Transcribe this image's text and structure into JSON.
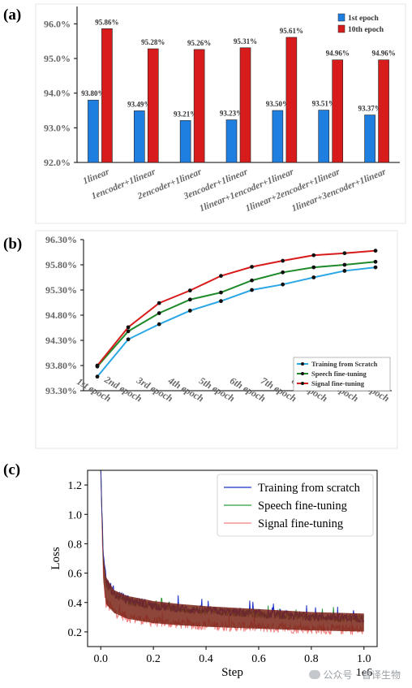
{
  "panels": {
    "a": {
      "label": "(a)"
    },
    "b": {
      "label": "(b)"
    },
    "c": {
      "label": "(c)"
    }
  },
  "watermark": "公众号 · 普译生物",
  "colors": {
    "blue": "#1f7fe0",
    "red": "#d81c1c",
    "green": "#1e8a2a",
    "cyan": "#2aa7e4",
    "loss_blue": "#1f30c8",
    "loss_green": "#2c9a3a",
    "loss_red": "#f08080",
    "loss_brown": "#7a2418"
  },
  "chart_data": [
    {
      "type": "bar",
      "categories": [
        "1linear",
        "1encoder+1linear",
        "2encoder+1linear",
        "3encoder+1linear",
        "1linear+1encoder+1linear",
        "1linear+2encoder+1linear",
        "1linear+3encoder+1linear"
      ],
      "series": [
        {
          "name": "1st epoch",
          "values": [
            93.8,
            93.49,
            93.21,
            93.23,
            93.5,
            93.51,
            93.37
          ]
        },
        {
          "name": "10th epoch",
          "values": [
            95.86,
            95.28,
            95.26,
            95.31,
            95.61,
            94.96,
            94.96
          ]
        }
      ],
      "value_labels": [
        [
          "93.80%",
          "93.49%",
          "93.21%",
          "93.23%",
          "93.50%",
          "93.51%",
          "93.37%"
        ],
        [
          "95.86%",
          "95.28%",
          "95.26%",
          "95.31%",
          "95.61%",
          "94.96%",
          "94.96%"
        ]
      ],
      "ylim": [
        92.0,
        96.5
      ],
      "yticks": [
        92.0,
        93.0,
        94.0,
        95.0,
        96.0
      ],
      "ytick_labels": [
        "92.0%",
        "93.0%",
        "94.0%",
        "95.0%",
        "96.0%"
      ],
      "legend": "top-right"
    },
    {
      "type": "line",
      "categories": [
        "1st epoch",
        "2nd epoch",
        "3rd epoch",
        "4th epoch",
        "5th epoch",
        "6th epoch",
        "7th epoch",
        "8th epoch",
        "9th epoch",
        "10th epoch"
      ],
      "series": [
        {
          "name": "Training from Scratch",
          "values": [
            93.58,
            94.32,
            94.62,
            94.89,
            95.08,
            95.3,
            95.41,
            95.55,
            95.68,
            95.75
          ]
        },
        {
          "name": "Speech fine-tuning",
          "values": [
            93.78,
            94.48,
            94.84,
            95.11,
            95.25,
            95.49,
            95.65,
            95.75,
            95.8,
            95.86
          ]
        },
        {
          "name": "Signal fine-tuning",
          "values": [
            93.8,
            94.56,
            95.04,
            95.29,
            95.58,
            95.76,
            95.88,
            95.99,
            96.03,
            96.08
          ]
        }
      ],
      "ylim": [
        93.3,
        96.3
      ],
      "yticks": [
        93.3,
        93.8,
        94.3,
        94.8,
        95.3,
        95.8,
        96.3
      ],
      "ytick_labels": [
        "93.30%",
        "93.80%",
        "94.30%",
        "94.80%",
        "95.30%",
        "95.80%",
        "96.30%"
      ],
      "legend": "bottom-right"
    },
    {
      "type": "line",
      "xlabel": "Step",
      "ylabel": "Loss",
      "x_offset_label": "1e6",
      "xlim": [
        -0.05,
        1.05
      ],
      "ylim": [
        0.1,
        1.3
      ],
      "xticks": [
        0.0,
        0.2,
        0.4,
        0.6,
        0.8,
        1.0
      ],
      "xtick_labels": [
        "0.0",
        "0.2",
        "0.4",
        "0.6",
        "0.8",
        "1.0"
      ],
      "yticks": [
        0.2,
        0.4,
        0.6,
        0.8,
        1.0,
        1.2
      ],
      "ytick_labels": [
        "0.2",
        "0.4",
        "0.6",
        "0.8",
        "1.0",
        "1.2"
      ],
      "series": [
        {
          "name": "Training from scratch",
          "x": [
            0.0,
            0.01,
            0.02,
            0.05,
            0.1,
            0.2,
            0.3,
            0.4,
            0.5,
            0.6,
            0.7,
            0.8,
            0.9,
            1.0
          ],
          "values": [
            1.3,
            0.7,
            0.55,
            0.46,
            0.42,
            0.38,
            0.36,
            0.345,
            0.335,
            0.325,
            0.315,
            0.305,
            0.3,
            0.295
          ]
        },
        {
          "name": "Speech fine-tuning",
          "x": [
            0.0,
            0.01,
            0.02,
            0.05,
            0.1,
            0.2,
            0.3,
            0.4,
            0.5,
            0.6,
            0.7,
            0.8,
            0.9,
            1.0
          ],
          "values": [
            1.3,
            0.68,
            0.54,
            0.45,
            0.41,
            0.375,
            0.355,
            0.34,
            0.33,
            0.32,
            0.31,
            0.3,
            0.295,
            0.29
          ]
        },
        {
          "name": "Signal fine-tuning",
          "x": [
            0.0,
            0.01,
            0.02,
            0.05,
            0.1,
            0.2,
            0.3,
            0.4,
            0.5,
            0.6,
            0.7,
            0.8,
            0.9,
            1.0
          ],
          "values": [
            1.3,
            0.55,
            0.4,
            0.34,
            0.3,
            0.27,
            0.255,
            0.245,
            0.238,
            0.232,
            0.226,
            0.22,
            0.216,
            0.212
          ]
        }
      ],
      "legend": "top-right"
    }
  ]
}
